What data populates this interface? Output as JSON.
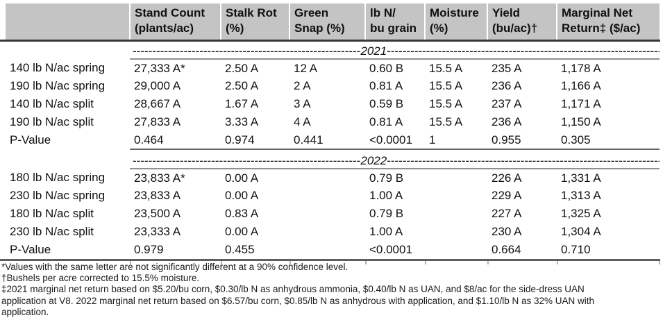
{
  "document": {
    "table": {
      "column_headers": [
        {
          "line1": "",
          "line2": ""
        },
        {
          "line1": "Stand Count",
          "line2": "(plants/ac)"
        },
        {
          "line1": "Stalk Rot",
          "line2": "(%)"
        },
        {
          "line1": "Green",
          "line2": "Snap (%)"
        },
        {
          "line1": "lb N/",
          "line2": "bu grain"
        },
        {
          "line1": "Moisture",
          "line2": "(%)"
        },
        {
          "line1": "Yield",
          "line2": "(bu/ac)†"
        },
        {
          "line1": "Marginal Net",
          "line2": "Return‡ ($/ac)"
        }
      ],
      "sections": [
        {
          "year": "2021",
          "dash_left": "----------------------------------------------------------",
          "dash_right": "---------------------------------------------------------------------------",
          "rows": [
            {
              "label": "140 lb N/ac spring",
              "values": [
                "27,333 A*",
                "2.50 A",
                "12 A",
                "0.60 B",
                "15.5 A",
                "235 A",
                "1,178 A"
              ],
              "pvalue": false
            },
            {
              "label": "190 lb N/ac spring",
              "values": [
                "29,000 A",
                "2.50 A",
                "2 A",
                "0.81 A",
                "15.5 A",
                "236 A",
                "1,166 A"
              ],
              "pvalue": false
            },
            {
              "label": "140 lb N/ac split",
              "values": [
                "28,667 A",
                "1.67 A",
                "3 A",
                "0.59 B",
                "15.5 A",
                "237 A",
                "1,171 A"
              ],
              "pvalue": false
            },
            {
              "label": "190 lb N/ac split",
              "values": [
                "27,833 A",
                "3.33 A",
                "4 A",
                "0.81 A",
                "15.5 A",
                "236 A",
                "1,150 A"
              ],
              "pvalue": false
            },
            {
              "label": "P-Value",
              "values": [
                "0.464",
                "0.974",
                "0.441",
                "<0.0001",
                "1",
                "0.955",
                "0.305"
              ],
              "pvalue": true
            }
          ]
        },
        {
          "year": "2022",
          "dash_left": "----------------------------------------------------------",
          "dash_right": "---------------------------------------------------------------------------",
          "rows": [
            {
              "label": "180 lb N/ac spring",
              "values": [
                "23,833 A*",
                "0.00 A",
                "",
                "0.79 B",
                "",
                "226 A",
                "1,331 A"
              ],
              "pvalue": false
            },
            {
              "label": "230 lb N/ac spring",
              "values": [
                "23,833 A",
                "0.00 A",
                "",
                "1.00 A",
                "",
                "229 A",
                "1,313 A"
              ],
              "pvalue": false
            },
            {
              "label": "180 lb N/ac split",
              "values": [
                "23,500 A",
                "0.83 A",
                "",
                "0.79 B",
                "",
                "227 A",
                "1,325 A"
              ],
              "pvalue": false
            },
            {
              "label": "230 lb N/ac split",
              "values": [
                "23,333 A",
                "0.00 A",
                "",
                "1.00 A",
                "",
                "230 A",
                "1,304 A"
              ],
              "pvalue": false
            },
            {
              "label": "P-Value",
              "values": [
                "0.979",
                "0.455",
                "",
                "<0.0001",
                "",
                "0.664",
                "0.710"
              ],
              "pvalue": true
            }
          ]
        }
      ]
    },
    "footnotes": [
      "*Values with the same letter are not significantly different at a 90% confidence level.",
      "†Bushels per acre corrected to 15.5% moisture.",
      "‡2021 marginal net return based on $5.20/bu corn, $0.30/lb N as anhydrous ammonia, $0.40/lb N as UAN, and $8/ac for the side-dress UAN",
      "application at V8. 2022 marginal net return based on $6.57/bu corn, $0.85/lb N as anhydrous with application, and $1.10/lb N as 32% UAN with",
      "application."
    ]
  }
}
